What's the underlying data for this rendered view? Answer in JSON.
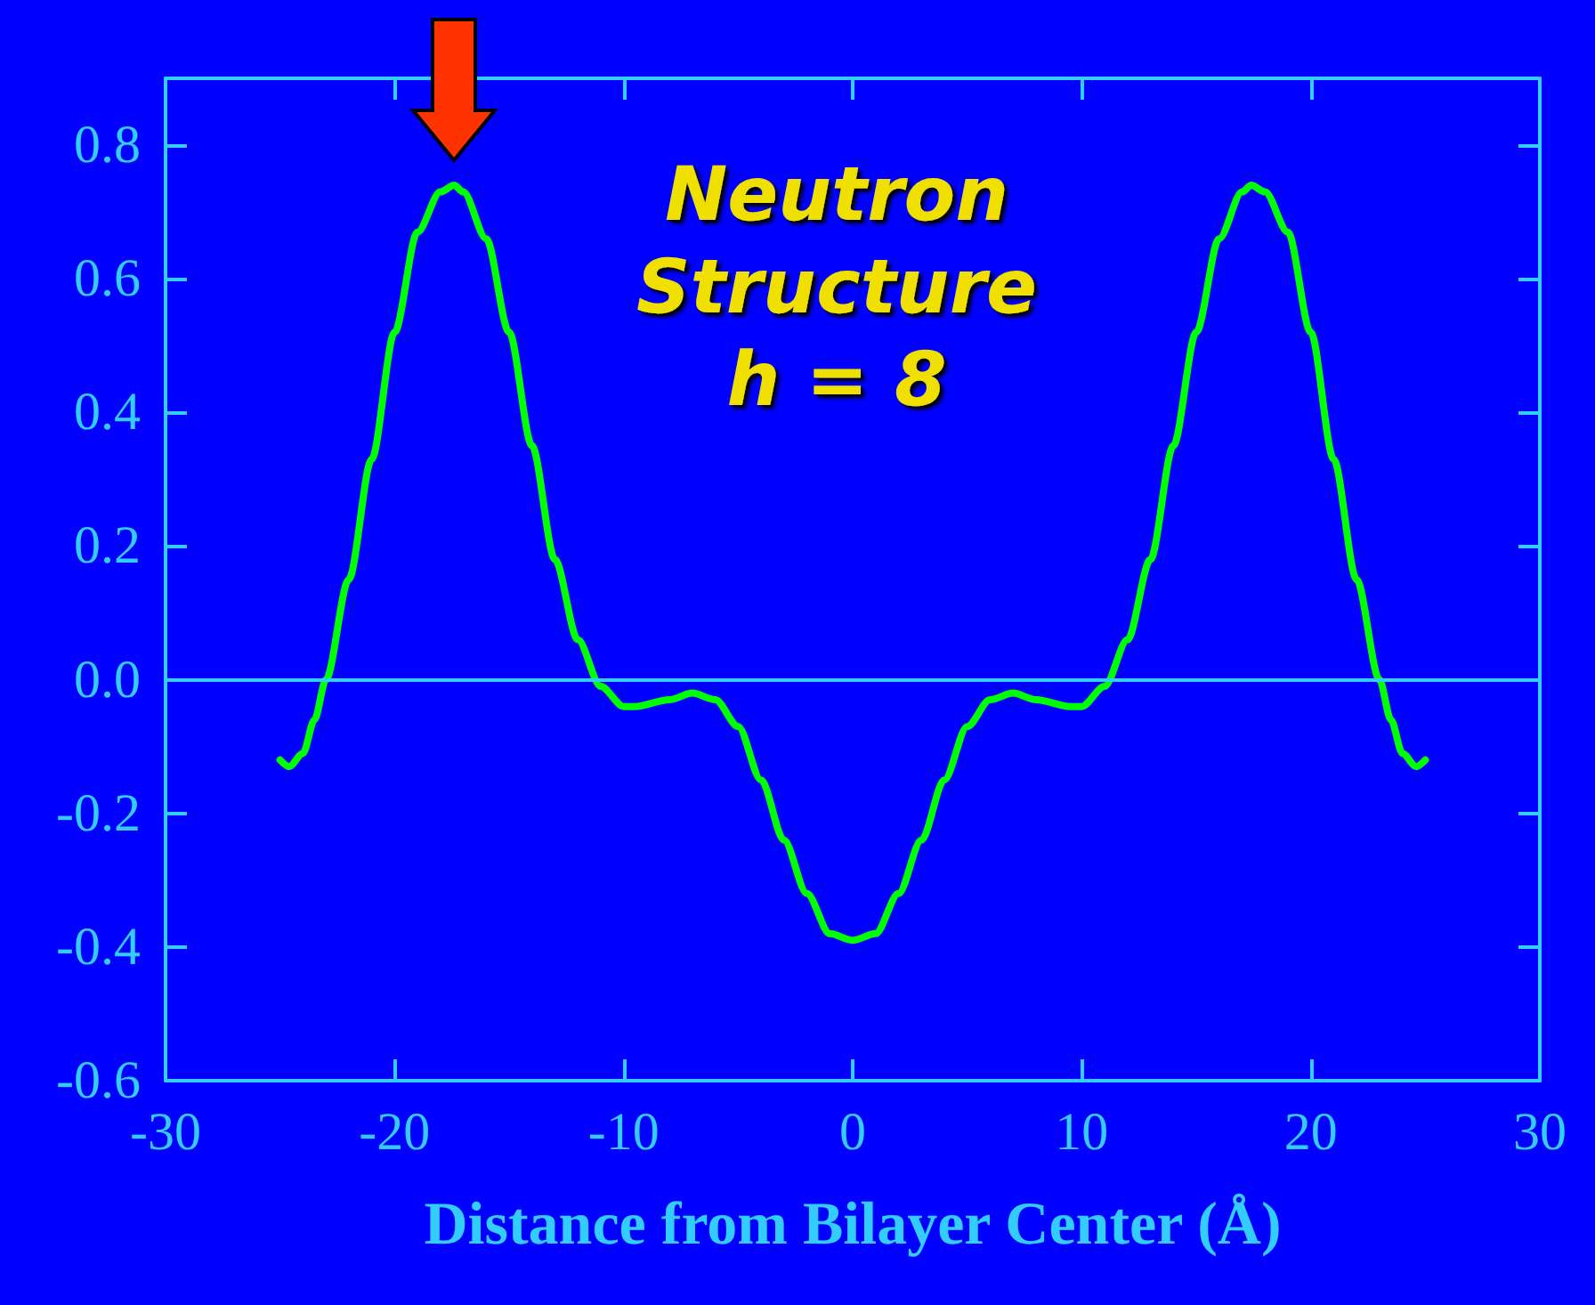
{
  "chart_data": {
    "type": "line",
    "title": "Neutron\nStructure\nh = 8",
    "xlabel": "Distance from Bilayer Center (Å)",
    "x": [
      -25,
      -24.6,
      -24,
      -23.5,
      -23,
      -22,
      -21,
      -20,
      -19,
      -18,
      -17.4,
      -17,
      -16,
      -15,
      -14,
      -13,
      -12,
      -11,
      -10,
      -9.5,
      -8,
      -7,
      -6,
      -5,
      -4,
      -3,
      -2,
      -1,
      0,
      1,
      2,
      3,
      4,
      5,
      6,
      7,
      8,
      9.5,
      10,
      11,
      12,
      13,
      14,
      15,
      16,
      17,
      17.4,
      18,
      19,
      20,
      21,
      22,
      23,
      23.5,
      24,
      24.6,
      25
    ],
    "series": [
      {
        "color": "#00ff00",
        "values": [
          -0.12,
          -0.13,
          -0.11,
          -0.06,
          0.0,
          0.15,
          0.33,
          0.52,
          0.67,
          0.73,
          0.74,
          0.73,
          0.66,
          0.52,
          0.35,
          0.18,
          0.06,
          -0.01,
          -0.04,
          -0.04,
          -0.03,
          -0.02,
          -0.03,
          -0.07,
          -0.15,
          -0.24,
          -0.32,
          -0.38,
          -0.39,
          -0.38,
          -0.32,
          -0.24,
          -0.15,
          -0.07,
          -0.03,
          -0.02,
          -0.03,
          -0.04,
          -0.04,
          -0.01,
          0.06,
          0.18,
          0.35,
          0.52,
          0.66,
          0.73,
          0.74,
          0.73,
          0.67,
          0.52,
          0.33,
          0.15,
          0.0,
          -0.06,
          -0.11,
          -0.13,
          -0.12
        ]
      }
    ],
    "xlim": [
      -30,
      30
    ],
    "xticks": [
      -30,
      -20,
      -10,
      0,
      10,
      20,
      30
    ],
    "ylim": [
      -0.6,
      0.9
    ],
    "yticks": [
      {
        "value": -0.6,
        "label": "-0.6"
      },
      {
        "value": -0.4,
        "label": "-0.4"
      },
      {
        "value": -0.2,
        "label": "-0.2"
      },
      {
        "value": 0,
        "label": "0.0"
      },
      {
        "value": 0.2,
        "label": "0.2"
      },
      {
        "value": 0.4,
        "label": "0.4"
      },
      {
        "value": 0.6,
        "label": "0.6"
      },
      {
        "value": 0.8,
        "label": "0.8"
      }
    ],
    "ref_lines": [
      {
        "axis": "y",
        "value": 0,
        "color": "#33ccff"
      }
    ],
    "grid": false,
    "marker": "none",
    "line_style": "solid"
  }
}
